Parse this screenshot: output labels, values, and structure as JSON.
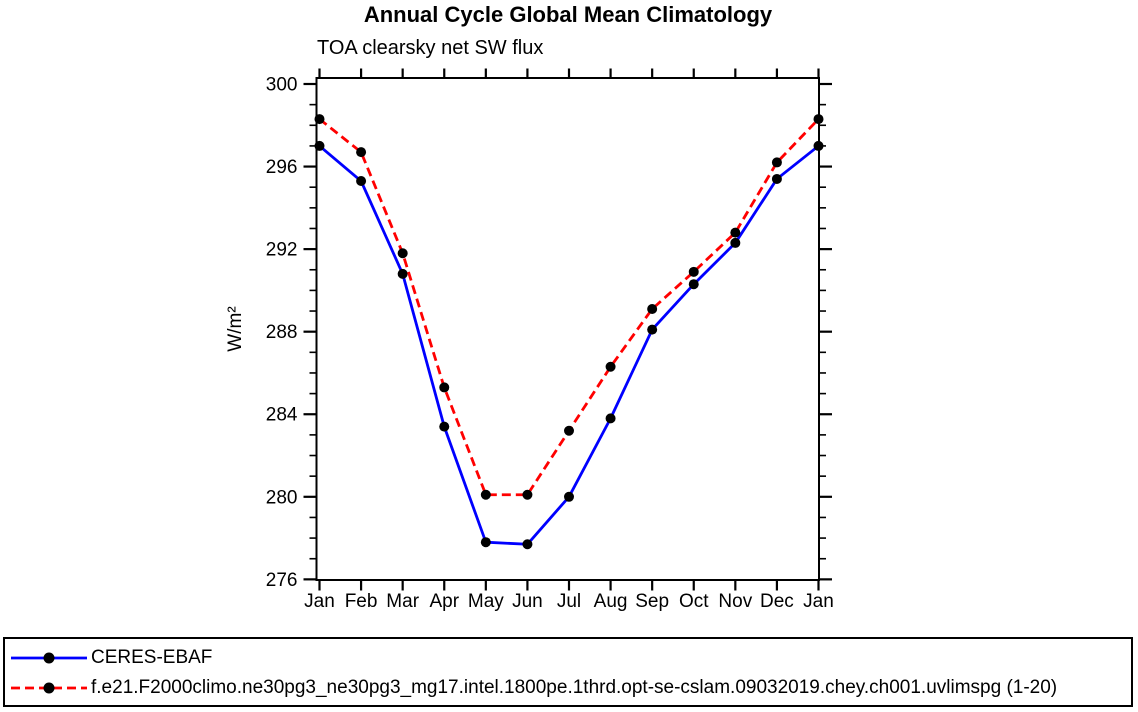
{
  "chart_data": {
    "type": "line",
    "title": "Annual Cycle Global Mean Climatology",
    "subtitle": "TOA clearsky net SW flux",
    "ylabel": "W/m²",
    "x_categories": [
      "Jan",
      "Feb",
      "Mar",
      "Apr",
      "May",
      "Jun",
      "Jul",
      "Aug",
      "Sep",
      "Oct",
      "Nov",
      "Dec",
      "Jan"
    ],
    "ylim": [
      276,
      300
    ],
    "y_major_ticks": [
      276,
      280,
      284,
      288,
      292,
      296,
      300
    ],
    "y_minor_step": 1,
    "grid": false,
    "legend_position": "bottom-box",
    "colors": {
      "axis": "#000000",
      "obs_line": "#0000ff",
      "model_line": "#ff0000",
      "marker": "#000000"
    },
    "series": [
      {
        "name": "CERES-EBAF",
        "line_color": "#0000ff",
        "line_style": "solid",
        "marker": "filled-circle",
        "marker_color": "#000000",
        "values": [
          297.0,
          295.3,
          290.8,
          283.4,
          277.8,
          277.7,
          280.0,
          283.8,
          288.1,
          290.3,
          292.3,
          295.4,
          297.0
        ]
      },
      {
        "name": "f.e21.F2000climo.ne30pg3_ne30pg3_mg17.intel.1800pe.1thrd.opt-se-cslam.09032019.chey.ch001.uvlimspg (1-20)",
        "line_color": "#ff0000",
        "line_style": "dashed",
        "marker": "filled-circle",
        "marker_color": "#000000",
        "values": [
          298.3,
          296.7,
          291.8,
          285.3,
          280.1,
          280.1,
          283.2,
          286.3,
          289.1,
          290.9,
          292.8,
          296.2,
          298.3
        ]
      }
    ]
  }
}
